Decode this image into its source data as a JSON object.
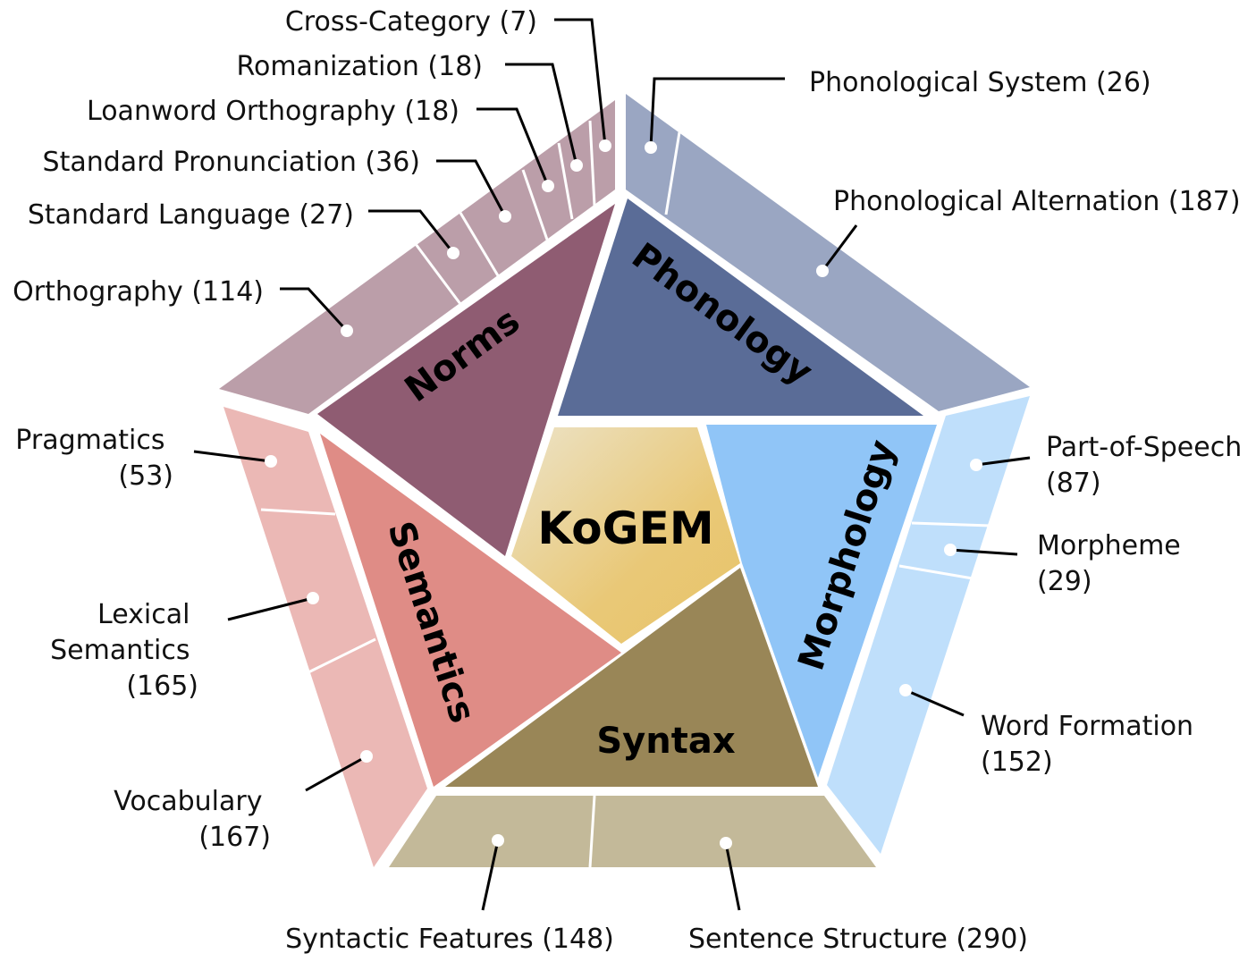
{
  "center_label": "KoGEM",
  "categories": {
    "phonology": "Phonology",
    "morphology": "Morphology",
    "syntax": "Syntax",
    "semantics": "Semantics",
    "norms": "Norms"
  },
  "subcategories": {
    "phonological_system": "Phonological System (26)",
    "phonological_alternation": "Phonological Alternation (187)",
    "part_of_speech": [
      "Part-of-Speech",
      "(87)"
    ],
    "morpheme": [
      "Morpheme",
      "(29)"
    ],
    "word_formation": [
      "Word Formation",
      "(152)"
    ],
    "sentence_structure": "Sentence Structure (290)",
    "syntactic_features": "Syntactic Features (148)",
    "vocabulary": [
      "Vocabulary",
      "(167)"
    ],
    "lexical_semantics": [
      "Lexical",
      "Semantics",
      "(165)"
    ],
    "pragmatics": [
      "Pragmatics",
      "(53)"
    ],
    "orthography": "Orthography (114)",
    "standard_language": "Standard Language (27)",
    "standard_pronunciation": "Standard Pronunciation (36)",
    "loanword_orthography": "Loanword Orthography (18)",
    "romanization": "Romanization (18)",
    "cross_category": "Cross-Category (7)"
  },
  "colors": {
    "norms_inner": "#8f5c72",
    "norms_outer": "#bb9ea9",
    "phonology_inner": "#5a6c97",
    "phonology_outer": "#9aa6c2",
    "morphology_inner": "#90c5f7",
    "morphology_outer": "#bfdffb",
    "syntax_inner": "#998657",
    "syntax_outer": "#c3b999",
    "semantics_inner": "#df8c86",
    "semantics_outer": "#ebb8b5",
    "center_light": "#ece3c8",
    "center_dark": "#e8c468"
  }
}
